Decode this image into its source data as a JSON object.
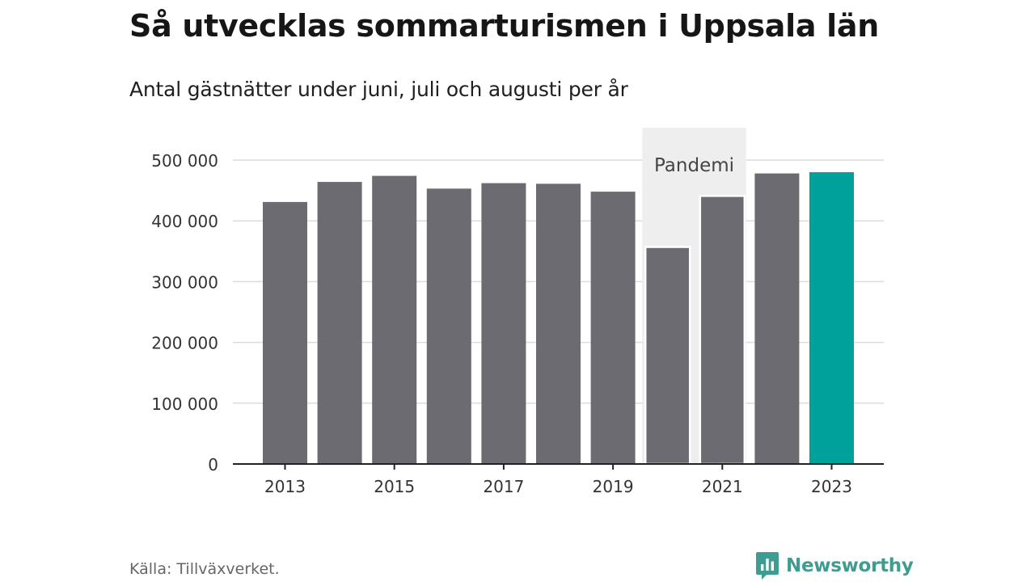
{
  "chart_data": {
    "type": "bar",
    "title": "Så utvecklas sommarturismen i Uppsala län",
    "subtitle": "Antal gästnätter under juni, juli och augusti per år",
    "categories": [
      "2013",
      "2014",
      "2015",
      "2016",
      "2017",
      "2018",
      "2019",
      "2020",
      "2021",
      "2022",
      "2023"
    ],
    "values": [
      431000,
      464000,
      474000,
      453000,
      462000,
      461000,
      448000,
      357000,
      441000,
      478000,
      480000
    ],
    "x_tick_labels": [
      "2013",
      "2015",
      "2017",
      "2019",
      "2021",
      "2023"
    ],
    "y_tick_values": [
      0,
      100000,
      200000,
      300000,
      400000,
      500000
    ],
    "y_tick_labels": [
      "0",
      "100 000",
      "200 000",
      "300 000",
      "400 000",
      "500 000"
    ],
    "ylim": [
      0,
      500000
    ],
    "grid": true,
    "highlight": {
      "category": "2023",
      "color": "#00a19a"
    },
    "bar_color": "#6c6b72",
    "annotation": {
      "label": "Pandemi",
      "from": "2020",
      "to": "2021",
      "color": "#eeeeef"
    }
  },
  "footer": {
    "source": "Källa: Tillväxverket.",
    "brand": "Newsworthy",
    "brand_color": "#3f9c91",
    "brand_icon": "bar-chart-speech-bubble-icon"
  }
}
